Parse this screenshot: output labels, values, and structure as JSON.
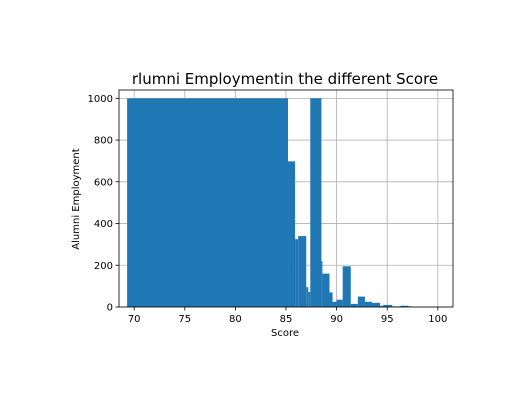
{
  "chart_data": {
    "type": "bar",
    "title": "rlumni Employmentin the different Score",
    "xlabel": "Score",
    "ylabel": "Alumni Employment",
    "xlim": [
      68.5,
      101.5
    ],
    "ylim": [
      0,
      1040
    ],
    "xticks": [
      "70",
      "75",
      "80",
      "85",
      "90",
      "95",
      "100"
    ],
    "yticks": [
      "0",
      "200",
      "400",
      "600",
      "800",
      "1000"
    ],
    "grid": true,
    "bar_color": "#1f77b4",
    "bars": [
      {
        "x0": 69.3,
        "x1": 85.2,
        "value": 1000
      },
      {
        "x0": 85.2,
        "x1": 85.9,
        "value": 698
      },
      {
        "x0": 85.9,
        "x1": 86.2,
        "value": 325
      },
      {
        "x0": 86.2,
        "x1": 87.0,
        "value": 340
      },
      {
        "x0": 87.0,
        "x1": 87.2,
        "value": 95
      },
      {
        "x0": 87.2,
        "x1": 87.4,
        "value": 72
      },
      {
        "x0": 87.4,
        "x1": 88.5,
        "value": 1000
      },
      {
        "x0": 88.5,
        "x1": 88.6,
        "value": 220
      },
      {
        "x0": 88.6,
        "x1": 89.3,
        "value": 160
      },
      {
        "x0": 89.3,
        "x1": 89.6,
        "value": 70
      },
      {
        "x0": 89.6,
        "x1": 90.0,
        "value": 25
      },
      {
        "x0": 90.0,
        "x1": 90.6,
        "value": 35
      },
      {
        "x0": 90.6,
        "x1": 91.4,
        "value": 195
      },
      {
        "x0": 91.4,
        "x1": 92.1,
        "value": 15
      },
      {
        "x0": 92.1,
        "x1": 92.8,
        "value": 50
      },
      {
        "x0": 92.8,
        "x1": 93.5,
        "value": 25
      },
      {
        "x0": 93.5,
        "x1": 94.3,
        "value": 20
      },
      {
        "x0": 94.3,
        "x1": 94.6,
        "value": 5
      },
      {
        "x0": 94.6,
        "x1": 95.5,
        "value": 10
      },
      {
        "x0": 95.5,
        "x1": 96.3,
        "value": 3
      },
      {
        "x0": 96.3,
        "x1": 97.1,
        "value": 6
      },
      {
        "x0": 97.1,
        "x1": 97.4,
        "value": 3
      }
    ]
  }
}
